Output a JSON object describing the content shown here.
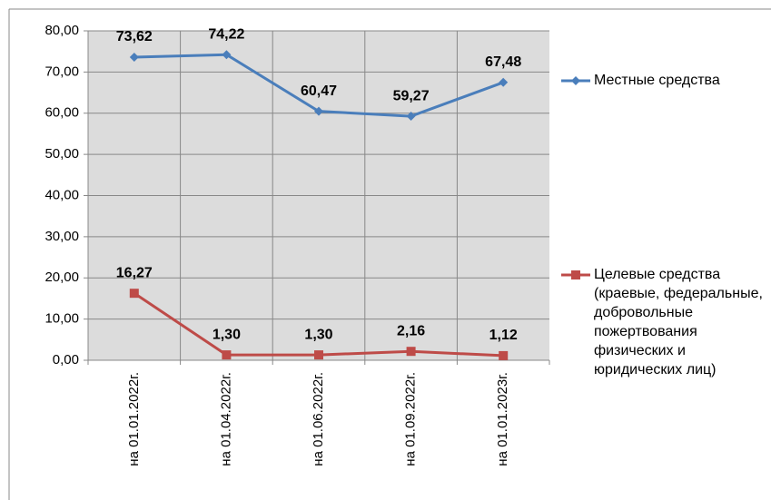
{
  "chart_data": {
    "type": "line",
    "categories": [
      "на 01.01.2022г.",
      "на 01.04.2022г.",
      "на 01.06.2022г.",
      "на 01.09.2022г.",
      "на 01.01.2023г."
    ],
    "series": [
      {
        "name": "Местные средства",
        "color": "#4a7ebb",
        "marker": "diamond",
        "values": [
          73.62,
          74.22,
          60.47,
          59.27,
          67.48
        ],
        "value_labels": [
          "73,62",
          "74,22",
          "60,47",
          "59,27",
          "67,48"
        ]
      },
      {
        "name": "Целевые средства (краевые, федеральные, добровольные пожертвования физических и юридических лиц)",
        "color": "#be4b48",
        "marker": "square",
        "values": [
          16.27,
          1.3,
          1.3,
          2.16,
          1.12
        ],
        "value_labels": [
          "16,27",
          "1,30",
          "1,30",
          "2,16",
          "1,12"
        ]
      }
    ],
    "ylim": [
      0,
      80
    ],
    "yticks": [
      {
        "value": 0,
        "label": "0,00"
      },
      {
        "value": 10,
        "label": "10,00"
      },
      {
        "value": 20,
        "label": "20,00"
      },
      {
        "value": 30,
        "label": "30,00"
      },
      {
        "value": 40,
        "label": "40,00"
      },
      {
        "value": 50,
        "label": "50,00"
      },
      {
        "value": 60,
        "label": "60,00"
      },
      {
        "value": 70,
        "label": "70,00"
      },
      {
        "value": 80,
        "label": "80,00"
      }
    ],
    "grid": true,
    "legend": "right"
  }
}
